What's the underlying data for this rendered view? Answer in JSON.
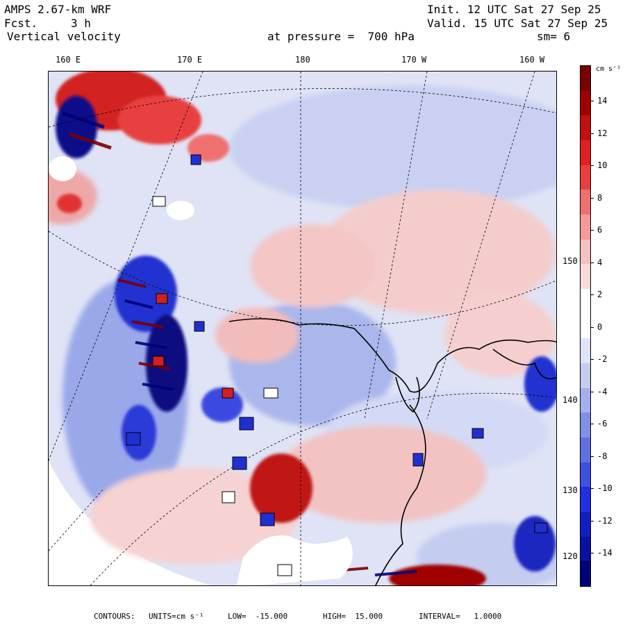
{
  "header": {
    "model": "AMPS 2.67-km WRF",
    "forecast_label": "Fcst.",
    "forecast_value": "3 h",
    "field": "Vertical velocity",
    "init": "Init. 12 UTC Sat 27 Sep 25",
    "valid": "Valid. 15 UTC Sat 27 Sep 25",
    "pressure": "at pressure =  700 hPa",
    "smoothing": "sm= 6"
  },
  "map": {
    "longitude_labels": [
      "160 E",
      "170 E",
      "180",
      "170 W",
      "160 W"
    ],
    "latitude_labels": [
      "150 W",
      "140 W",
      "130 W",
      "120 W"
    ]
  },
  "colorbar": {
    "units": "cm s⁻¹",
    "labels": [
      "14",
      "12",
      "10",
      "8",
      "6",
      "4",
      "2",
      "0",
      "-2",
      "-4",
      "-6",
      "-8",
      "-10",
      "-12",
      "-14"
    ],
    "colors": {
      "strong_up": "#7a0000",
      "mid_up": "#e02020",
      "weak_up": "#f4c0c0",
      "neutral": "#ffffff",
      "weak_down": "#c4ccf0",
      "mid_down": "#2030e0",
      "strong_down": "#00007a"
    }
  },
  "footer": {
    "contours": "CONTOURS:",
    "units_label": "UNITS=cm s⁻¹",
    "low": "LOW=  -15.000",
    "high": "HIGH=  15.000",
    "interval": "INTERVAL=   1.0000"
  }
}
